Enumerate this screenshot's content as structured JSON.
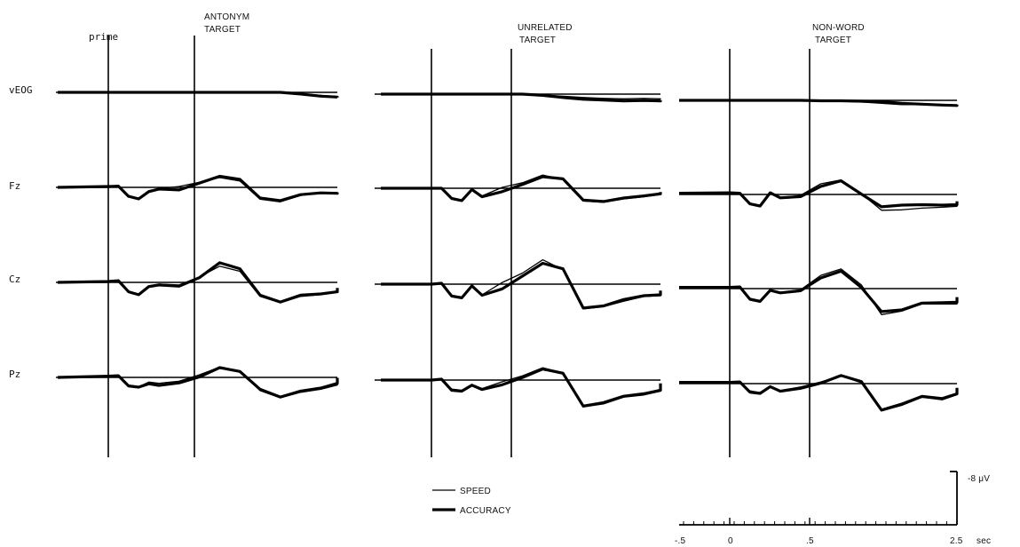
{
  "chart_data": {
    "type": "line",
    "channels": [
      "vEOG",
      "Fz",
      "Cz",
      "Pz"
    ],
    "legend": [
      {
        "name": "SPEED",
        "style": "thin"
      },
      {
        "name": "ACCURACY",
        "style": "thick"
      }
    ],
    "panels": [
      {
        "id": "antonym",
        "title_lines": [
          "ANTONYM",
          "TARGET"
        ],
        "prime_label": "prime"
      },
      {
        "id": "unrelated",
        "title_lines": [
          "UNRELATED",
          "TARGET"
        ],
        "prime_label": ""
      },
      {
        "id": "nonword",
        "title_lines": [
          "NON-WORD",
          "TARGET"
        ],
        "prime_label": ""
      }
    ],
    "scale_bar": {
      "amplitude_label": "-8 μV",
      "ticks": [
        "-.5",
        "0",
        ".5",
        "2.5"
      ],
      "unit": "sec"
    },
    "waveform_keypoints_sec": [
      -0.5,
      0,
      0.1,
      0.2,
      0.3,
      0.4,
      0.5,
      0.7,
      0.9,
      1.1,
      1.3,
      1.5,
      1.7,
      1.9,
      2.1,
      2.3,
      2.5
    ],
    "waveforms_uV": {
      "antonym": {
        "vEOG": {
          "speed": [
            0,
            0,
            0,
            0,
            0,
            0,
            0,
            0,
            0,
            0,
            0,
            0,
            0,
            -0.3,
            -0.7,
            -1.0,
            -1.1
          ],
          "accuracy": [
            0,
            0,
            0,
            0,
            0,
            0,
            0,
            0,
            0,
            0,
            0,
            0,
            0,
            -0.4,
            -0.9,
            -1.1,
            -1.2
          ]
        },
        "Fz": {
          "speed": [
            0,
            0,
            0.1,
            -2,
            -2.5,
            -0.8,
            -0.3,
            0.2,
            1.2,
            2.3,
            1.5,
            -2.8,
            -3.4,
            -1.9,
            -1.2,
            -1.5,
            -1.1
          ],
          "accuracy": [
            0,
            0.2,
            0.3,
            -2.1,
            -2.7,
            -1.0,
            -0.4,
            -0.6,
            1.0,
            2.6,
            1.9,
            -2.5,
            -3.1,
            -1.7,
            -1.3,
            -1.4,
            -1.2
          ]
        },
        "Cz": {
          "speed": [
            0,
            0,
            0.1,
            -2.3,
            -3.0,
            -0.8,
            -0.4,
            -0.6,
            1.3,
            3.8,
            2.6,
            -3.3,
            -4.8,
            -3.3,
            -2.9,
            -2.2,
            -1.4
          ],
          "accuracy": [
            0,
            0.2,
            0.4,
            -2.2,
            -2.9,
            -1.0,
            -0.6,
            -0.9,
            1.1,
            4.6,
            3.2,
            -3.0,
            -4.6,
            -3.0,
            -2.7,
            -2.2,
            -1.3
          ]
        },
        "Pz": {
          "speed": [
            0,
            0,
            0.2,
            -1.8,
            -2.2,
            -1.1,
            -1.4,
            -0.9,
            0.6,
            2.4,
            1.5,
            -3.1,
            -4.8,
            -3.5,
            -2.8,
            -1.8,
            -0.3
          ],
          "accuracy": [
            0,
            0.3,
            0.4,
            -2.0,
            -2.3,
            -1.5,
            -1.9,
            -1.3,
            0.1,
            2.3,
            1.4,
            -2.8,
            -4.6,
            -3.2,
            -2.5,
            -1.4,
            -0.1
          ]
        }
      },
      "unrelated": {
        "vEOG": {
          "speed": [
            0,
            0,
            0,
            0,
            0,
            0,
            0,
            0,
            0,
            -0.2,
            -0.5,
            -0.8,
            -1.0,
            -1.1,
            -1.0,
            -1.1,
            -1.0
          ],
          "accuracy": [
            0,
            0,
            0,
            0,
            0,
            0,
            0,
            0,
            0,
            -0.3,
            -0.8,
            -1.2,
            -1.4,
            -1.6,
            -1.5,
            -1.6,
            -1.4
          ]
        },
        "Fz": {
          "speed": [
            0,
            0,
            0,
            -2.3,
            -2.8,
            -0.4,
            -1.8,
            0.2,
            1.3,
            3.1,
            2.0,
            -3.0,
            -3.3,
            -2.5,
            -2.0,
            -1.5,
            -1.1
          ],
          "accuracy": [
            0,
            0,
            0,
            -2.4,
            -2.9,
            -0.3,
            -2.0,
            -0.8,
            0.9,
            2.7,
            2.2,
            -2.8,
            -3.1,
            -2.3,
            -1.8,
            -1.3,
            -0.9
          ]
        },
        "Cz": {
          "speed": [
            0,
            0,
            0.1,
            -2.6,
            -3.0,
            -0.6,
            -2.5,
            0.4,
            2.6,
            5.7,
            3.4,
            -5.8,
            -5.3,
            -4.0,
            -2.9,
            -2.7,
            -1.7
          ],
          "accuracy": [
            0,
            0,
            0.2,
            -2.8,
            -3.2,
            -0.4,
            -2.6,
            -1.1,
            1.9,
            4.9,
            3.6,
            -5.6,
            -5.1,
            -3.6,
            -2.7,
            -2.5,
            -1.5
          ]
        },
        "Pz": {
          "speed": [
            0,
            0,
            0.1,
            -2.1,
            -2.4,
            -1.0,
            -2.0,
            -0.4,
            1.0,
            2.9,
            1.6,
            -6.3,
            -5.6,
            -4.0,
            -3.5,
            -2.6,
            -1.1
          ],
          "accuracy": [
            0,
            0,
            0.2,
            -2.4,
            -2.6,
            -1.2,
            -2.2,
            -1.1,
            0.6,
            2.6,
            1.6,
            -6.1,
            -5.3,
            -3.8,
            -3.2,
            -2.4,
            -0.8
          ]
        }
      },
      "nonword": {
        "vEOG": {
          "speed": [
            0,
            0,
            0,
            0,
            0,
            0,
            0,
            0,
            -0.1,
            -0.2,
            -0.4,
            -0.7,
            -1.0,
            -1.0,
            -1.1,
            -1.1,
            -1.0
          ],
          "accuracy": [
            0,
            0,
            0,
            0,
            0,
            0,
            0,
            0,
            -0.1,
            -0.1,
            -0.2,
            -0.3,
            -0.7,
            -0.9,
            -1.1,
            -1.2,
            -1.0
          ]
        },
        "Fz": {
          "speed": [
            0.2,
            0.1,
            0.1,
            -2.1,
            -2.6,
            0.3,
            -0.9,
            -0.2,
            2.5,
            3.4,
            0.2,
            -3.7,
            -3.6,
            -3.2,
            -3.0,
            -2.8,
            -1.6
          ],
          "accuracy": [
            0.3,
            0.4,
            0.3,
            -2.2,
            -2.7,
            0.4,
            -0.8,
            -0.5,
            1.9,
            3.2,
            0.1,
            -2.9,
            -2.5,
            -2.4,
            -2.5,
            -2.4,
            -1.6
          ]
        },
        "Cz": {
          "speed": [
            0.2,
            0.1,
            0.2,
            -2.3,
            -2.8,
            -0.3,
            -0.9,
            -0.3,
            3.1,
            4.6,
            0.9,
            -6.1,
            -5.3,
            -3.6,
            -3.6,
            -3.6,
            -2.3
          ],
          "accuracy": [
            0.3,
            0.3,
            0.4,
            -2.5,
            -3.0,
            -0.4,
            -1.0,
            -0.5,
            2.5,
            4.1,
            0.3,
            -5.4,
            -5.0,
            -3.4,
            -3.3,
            -3.2,
            -2.0
          ]
        },
        "Pz": {
          "speed": [
            0.2,
            0.1,
            0.2,
            -1.7,
            -2.1,
            -0.6,
            -1.6,
            -0.8,
            0.4,
            1.8,
            0.2,
            -6.4,
            -5.1,
            -3.2,
            -3.8,
            -2.6,
            -1.2
          ],
          "accuracy": [
            0.3,
            0.3,
            0.4,
            -2.0,
            -2.3,
            -0.7,
            -1.8,
            -1.1,
            0.1,
            1.9,
            0.5,
            -6.2,
            -4.8,
            -3.0,
            -3.5,
            -2.4,
            -1.0
          ]
        }
      }
    }
  }
}
